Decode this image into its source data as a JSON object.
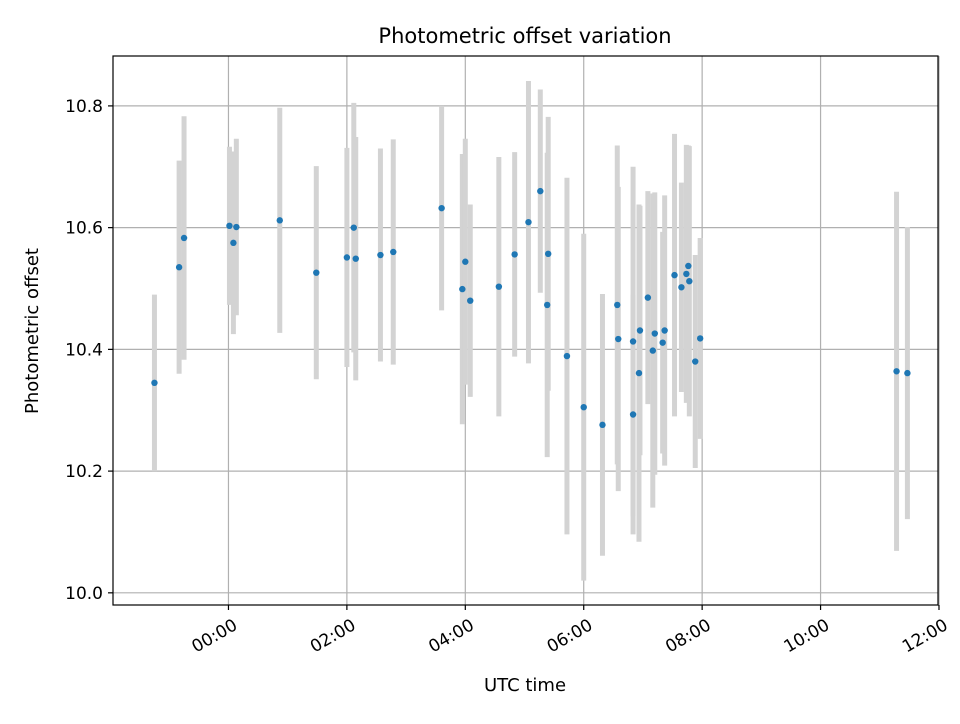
{
  "chart_data": {
    "type": "scatter",
    "title": "Photometric offset variation",
    "xlabel": "UTC time",
    "ylabel": "Photometric offset",
    "x_tick_labels": [
      "00:00",
      "02:00",
      "04:00",
      "06:00",
      "08:00",
      "10:00",
      "12:00"
    ],
    "y_tick_labels": [
      "10.0",
      "10.2",
      "10.4",
      "10.6",
      "10.8"
    ],
    "xlim": [
      "-01:57",
      "11:59"
    ],
    "ylim": [
      9.98,
      10.882
    ],
    "grid": true,
    "colors": {
      "points": "#1f77b4",
      "errorbars": "#d3d3d3",
      "grid": "#b0b0b0"
    },
    "series": [
      {
        "x": [
          "-01:15",
          "-00:50",
          "-00:45",
          "00:01",
          "00:05",
          "00:08",
          "00:52",
          "01:29",
          "02:00",
          "02:07",
          "02:09",
          "02:34",
          "02:47",
          "03:36",
          "03:57",
          "04:00",
          "04:05",
          "04:34",
          "04:50",
          "05:04",
          "05:16",
          "05:23",
          "05:24",
          "05:43",
          "06:00",
          "06:19",
          "06:34",
          "06:35",
          "06:50",
          "06:50",
          "06:56",
          "06:57",
          "07:05",
          "07:10",
          "07:12",
          "07:20",
          "07:22",
          "07:32",
          "07:39",
          "07:44",
          "07:46",
          "07:47",
          "07:53",
          "07:58",
          "11:17",
          "11:28"
        ],
        "y": [
          10.345,
          10.535,
          10.583,
          10.603,
          10.575,
          10.601,
          10.612,
          10.526,
          10.551,
          10.6,
          10.549,
          10.555,
          10.56,
          10.632,
          10.499,
          10.544,
          10.48,
          10.503,
          10.556,
          10.609,
          10.66,
          10.473,
          10.557,
          10.389,
          10.305,
          10.276,
          10.473,
          10.417,
          10.293,
          10.413,
          10.361,
          10.431,
          10.485,
          10.398,
          10.426,
          10.411,
          10.431,
          10.522,
          10.502,
          10.524,
          10.537,
          10.512,
          10.38,
          10.418,
          10.364,
          10.361
        ],
        "yerr": [
          0.145,
          0.175,
          0.2,
          0.13,
          0.15,
          0.145,
          0.185,
          0.175,
          0.18,
          0.205,
          0.2,
          0.175,
          0.185,
          0.168,
          0.222,
          0.202,
          0.158,
          0.213,
          0.168,
          0.232,
          0.167,
          0.25,
          0.225,
          0.293,
          0.285,
          0.215,
          0.262,
          0.25,
          0.197,
          0.287,
          0.277,
          0.205,
          0.175,
          0.258,
          0.232,
          0.182,
          0.222,
          0.232,
          0.172,
          0.212,
          0.198,
          0.222,
          0.175,
          0.165,
          0.295,
          0.24
        ]
      }
    ]
  }
}
